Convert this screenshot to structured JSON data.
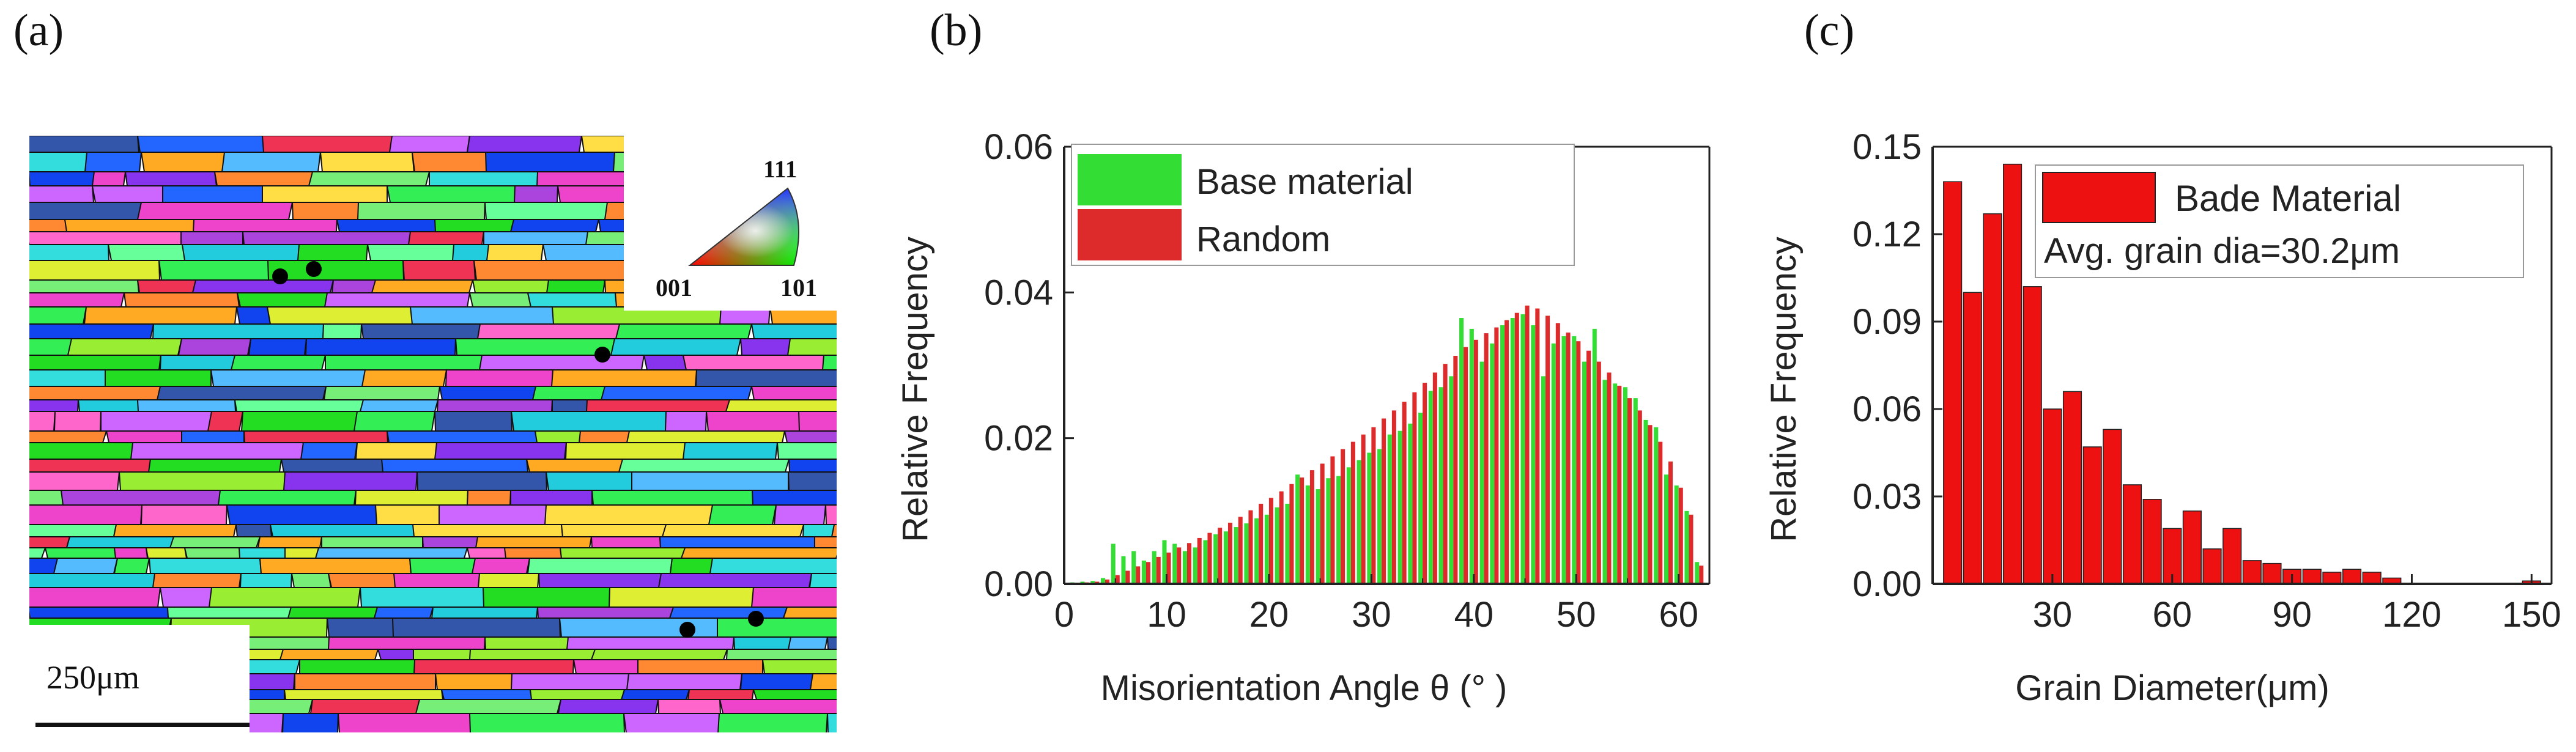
{
  "panels": {
    "a": {
      "label": "(a)",
      "scale_bar": "250μm",
      "ipf_key": {
        "top": "111",
        "left": "001",
        "right": "101"
      }
    },
    "b": {
      "label": "(b)"
    },
    "c": {
      "label": "(c)"
    }
  },
  "colors": {
    "green": "#33dd33",
    "red": "#dd2a2a",
    "axis": "#222222",
    "ebsd_palette": [
      "#22dd22",
      "#33ee55",
      "#1144ee",
      "#2266ff",
      "#8833ee",
      "#aa44dd",
      "#ee44cc",
      "#ff66cc",
      "#22ccdd",
      "#33dddd",
      "#ffaa22",
      "#ff8833",
      "#ddee33",
      "#99ee33",
      "#77ee77",
      "#55bbff",
      "#cc66ff",
      "#ee3355",
      "#ffdd44",
      "#66ff99",
      "#3355aa",
      "#ffffff"
    ]
  },
  "chart_data": [
    {
      "id": "b",
      "type": "bar",
      "xlabel": "Misorientation Angle θ (° )",
      "ylabel": "Relative Frequency",
      "xlim": [
        0,
        63
      ],
      "ylim": [
        0,
        0.06
      ],
      "xticks": [
        "0",
        "10",
        "20",
        "30",
        "40",
        "50",
        "60"
      ],
      "yticks": [
        "0.00",
        "0.02",
        "0.04",
        "0.06"
      ],
      "x": [
        1,
        2,
        3,
        4,
        5,
        6,
        7,
        8,
        9,
        10,
        11,
        12,
        13,
        14,
        15,
        16,
        17,
        18,
        19,
        20,
        21,
        22,
        23,
        24,
        25,
        26,
        27,
        28,
        29,
        30,
        31,
        32,
        33,
        34,
        35,
        36,
        37,
        38,
        39,
        40,
        41,
        42,
        43,
        44,
        45,
        46,
        47,
        48,
        49,
        50,
        51,
        52,
        53,
        54,
        55,
        56,
        57,
        58,
        59,
        60,
        61,
        62
      ],
      "series": [
        {
          "name": "Base material",
          "color": "#33dd33",
          "values": [
            0.0002,
            0.0003,
            0.0004,
            0.0008,
            0.0055,
            0.0038,
            0.0045,
            0.0032,
            0.0045,
            0.006,
            0.0055,
            0.0045,
            0.005,
            0.006,
            0.0068,
            0.0072,
            0.0078,
            0.0083,
            0.009,
            0.0095,
            0.0105,
            0.011,
            0.015,
            0.0135,
            0.013,
            0.0145,
            0.0148,
            0.016,
            0.017,
            0.018,
            0.0185,
            0.0205,
            0.021,
            0.022,
            0.0235,
            0.0265,
            0.027,
            0.0285,
            0.0365,
            0.035,
            0.0305,
            0.033,
            0.0355,
            0.0365,
            0.037,
            0.0355,
            0.0285,
            0.033,
            0.034,
            0.034,
            0.0305,
            0.035,
            0.028,
            0.0275,
            0.027,
            0.0255,
            0.0225,
            0.0215,
            0.015,
            0.0135,
            0.01,
            0.003
          ]
        },
        {
          "name": "Random",
          "color": "#dd2a2a",
          "values": [
            0.0001,
            0.0002,
            0.0003,
            0.0006,
            0.0012,
            0.0018,
            0.0024,
            0.003,
            0.0037,
            0.0043,
            0.005,
            0.0056,
            0.0063,
            0.007,
            0.0077,
            0.0084,
            0.0092,
            0.0101,
            0.011,
            0.0118,
            0.0127,
            0.0137,
            0.0146,
            0.0156,
            0.0165,
            0.0175,
            0.0185,
            0.0195,
            0.0205,
            0.0215,
            0.0227,
            0.0238,
            0.025,
            0.0263,
            0.0276,
            0.029,
            0.0302,
            0.0313,
            0.0325,
            0.0335,
            0.0344,
            0.0352,
            0.0362,
            0.0372,
            0.0382,
            0.0378,
            0.0368,
            0.0358,
            0.0345,
            0.0333,
            0.032,
            0.0305,
            0.029,
            0.0272,
            0.0255,
            0.0238,
            0.0218,
            0.0195,
            0.0168,
            0.0132,
            0.0095,
            0.0025
          ]
        }
      ],
      "legend": {
        "placement": "top-left"
      }
    },
    {
      "id": "c",
      "type": "bar",
      "xlabel": "Grain Diameter(μm)",
      "ylabel": "Relative Frequency",
      "xlim": [
        0,
        155
      ],
      "ylim": [
        0,
        0.15
      ],
      "xticks": [
        "30",
        "60",
        "90",
        "120",
        "150"
      ],
      "yticks": [
        "0.00",
        "0.03",
        "0.06",
        "0.09",
        "0.12",
        "0.15"
      ],
      "bin_width": 5,
      "x": [
        5,
        10,
        15,
        20,
        25,
        30,
        35,
        40,
        45,
        50,
        55,
        60,
        65,
        70,
        75,
        80,
        85,
        90,
        95,
        100,
        105,
        110,
        115,
        120,
        125,
        130,
        135,
        140,
        145,
        150
      ],
      "series": [
        {
          "name": "Bade Material",
          "color": "#ee1111",
          "values": [
            0.138,
            0.1,
            0.127,
            0.144,
            0.102,
            0.06,
            0.066,
            0.047,
            0.053,
            0.034,
            0.029,
            0.019,
            0.025,
            0.012,
            0.019,
            0.008,
            0.007,
            0.005,
            0.005,
            0.004,
            0.005,
            0.004,
            0.002,
            0,
            0,
            0,
            0,
            0,
            0,
            0.001
          ]
        }
      ],
      "annotation": "Avg. grain dia=30.2μm",
      "legend": {
        "placement": "top-right"
      }
    }
  ]
}
